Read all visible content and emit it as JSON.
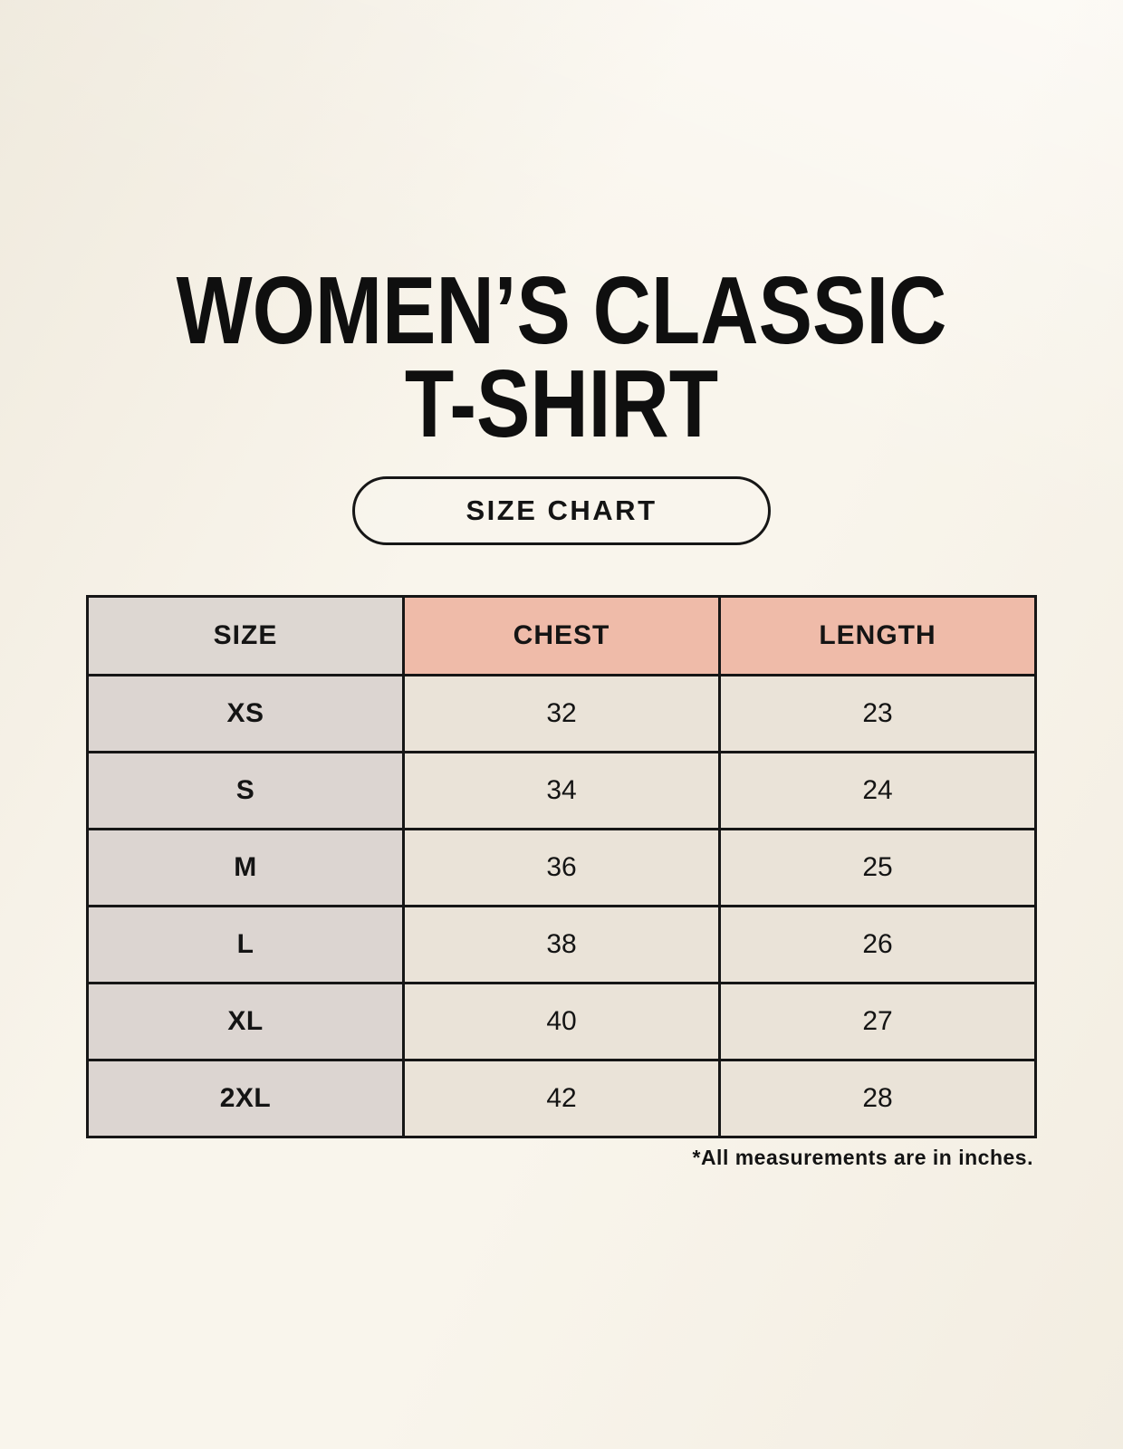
{
  "header": {
    "title_line1": "WOMEN’S CLASSIC",
    "title_line2": "T-SHIRT",
    "title_full": "WOMEN’S CLASSIC T-SHIRT",
    "badge_label": "SIZE CHART"
  },
  "footer": {
    "note": "*All measurements are in inches."
  },
  "colors": {
    "page_background": "#f9f5ec",
    "table_border": "#161616",
    "size_header_bg": "#ddd7d2",
    "measure_header_bg": "#efbba9",
    "size_column_bg": "#dcd5d1",
    "value_cell_bg": "#eae3d8",
    "text": "#141414"
  },
  "chart_data": {
    "type": "table",
    "title": "WOMEN’S CLASSIC T-SHIRT",
    "columns": [
      "SIZE",
      "CHEST",
      "LENGTH"
    ],
    "rows": [
      {
        "size": "XS",
        "chest": 32,
        "length": 23
      },
      {
        "size": "S",
        "chest": 34,
        "length": 24
      },
      {
        "size": "M",
        "chest": 36,
        "length": 25
      },
      {
        "size": "L",
        "chest": 38,
        "length": 26
      },
      {
        "size": "XL",
        "chest": 40,
        "length": 27
      },
      {
        "size": "2XL",
        "chest": 42,
        "length": 28
      }
    ],
    "units": "inches",
    "footnote": "*All measurements are in inches."
  }
}
